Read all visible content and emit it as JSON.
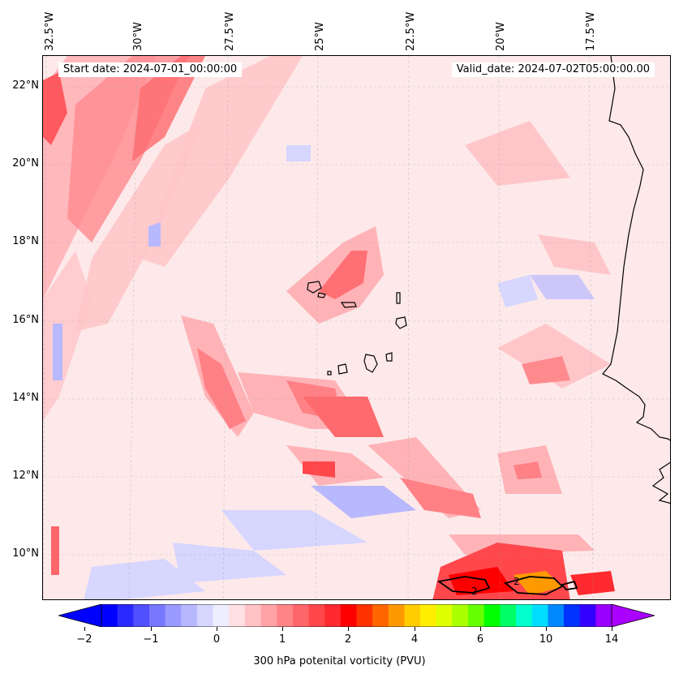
{
  "header": {
    "start_date": "Start date: 2024-07-01_00:00:00",
    "valid_date": "Valid_date: 2024-07-02T05:00:00.00"
  },
  "map": {
    "lon_labels": [
      "32.5°W",
      "30°W",
      "27.5°W",
      "25°W",
      "22.5°W",
      "20°W",
      "17.5°W"
    ],
    "lat_labels": [
      "22°N",
      "20°N",
      "18°N",
      "16°N",
      "14°N",
      "12°N",
      "10°N"
    ],
    "contour_labels": [
      "2",
      "2"
    ],
    "background_color": "#fde9ea",
    "coastline_color": "#000000"
  },
  "colorbar": {
    "label": "300 hPa potenital vorticity (PVU)",
    "ticks": [
      "−2",
      "−1",
      "0",
      "1",
      "2",
      "4",
      "6",
      "10",
      "14"
    ],
    "colors": [
      "#0000ff",
      "#2a2aff",
      "#5050ff",
      "#7878ff",
      "#9a9aff",
      "#b8b8ff",
      "#d6d6ff",
      "#eeeeff",
      "#ffe0e2",
      "#ffc2c5",
      "#ffa3a7",
      "#ff8488",
      "#ff666b",
      "#ff474c",
      "#ff2a2f",
      "#ff0000",
      "#ff3300",
      "#ff6600",
      "#ff9900",
      "#ffcc00",
      "#ffee00",
      "#ddff00",
      "#aaff00",
      "#66ff00",
      "#00ff00",
      "#00ff66",
      "#00ffcc",
      "#00ddff",
      "#0088ff",
      "#0033ff",
      "#3300ff",
      "#9900ff"
    ],
    "extend_min_color": "#0000ff",
    "extend_max_color": "#aa00ff"
  }
}
